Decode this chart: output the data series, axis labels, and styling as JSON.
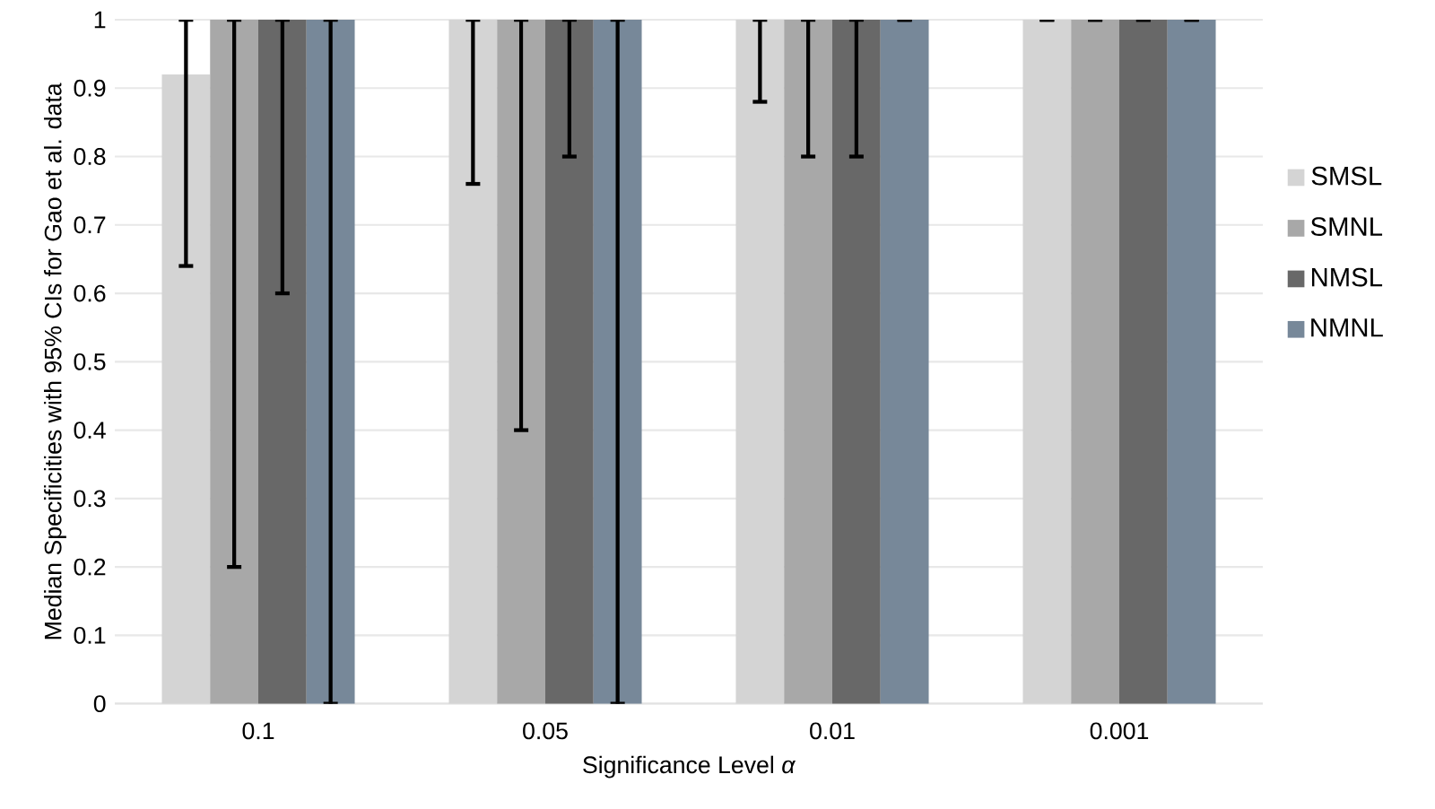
{
  "chart_data": {
    "type": "bar",
    "xlabel": "Significance Level *α*",
    "ylabel": "Median Specificities with 95% CIs for Gao et al. data",
    "categories": [
      "0.1",
      "0.05",
      "0.01",
      "0.001"
    ],
    "series": [
      {
        "name": "SMSL",
        "color": "#d4d4d4",
        "values": [
          0.92,
          1,
          1,
          1
        ],
        "errors": [
          [
            0.64,
            1
          ],
          [
            0.76,
            1
          ],
          [
            0.88,
            1
          ],
          [
            1,
            1
          ]
        ]
      },
      {
        "name": "SMNL",
        "color": "#a8a8a8",
        "values": [
          1,
          1,
          1,
          1
        ],
        "errors": [
          [
            0.2,
            1
          ],
          [
            0.4,
            1
          ],
          [
            0.8,
            1
          ],
          [
            1,
            1
          ]
        ]
      },
      {
        "name": "NMSL",
        "color": "#686868",
        "values": [
          1,
          1,
          1,
          1
        ],
        "errors": [
          [
            0.6,
            1
          ],
          [
            0.8,
            1
          ],
          [
            0.8,
            1
          ],
          [
            1,
            1
          ]
        ]
      },
      {
        "name": "NMNL",
        "color": "#778899",
        "values": [
          1,
          1,
          1,
          1
        ],
        "errors": [
          [
            0,
            1
          ],
          [
            0,
            1
          ],
          [
            1,
            1
          ],
          [
            1,
            1
          ]
        ]
      }
    ],
    "ylim": [
      0,
      1
    ],
    "yticks": [
      0,
      0.1,
      0.2,
      0.3,
      0.4,
      0.5,
      0.6,
      0.7,
      0.8,
      0.9,
      1
    ],
    "grid": "y",
    "legend": "right"
  }
}
